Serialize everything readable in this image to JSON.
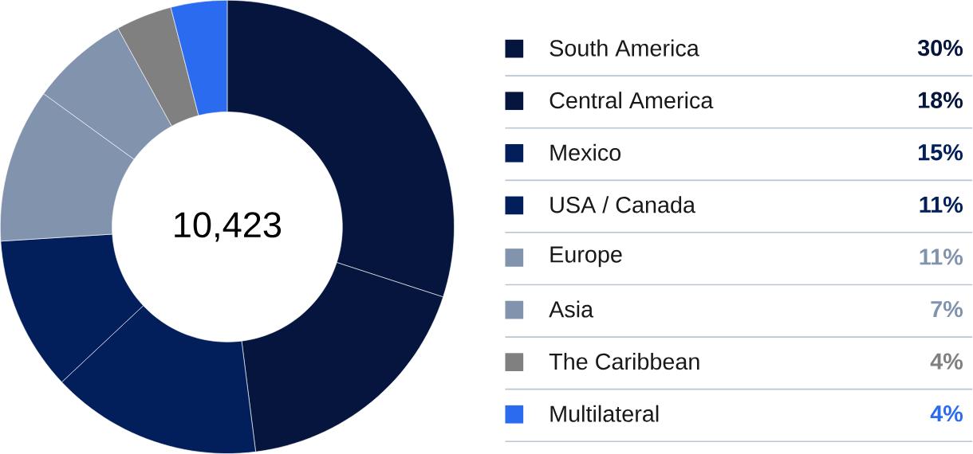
{
  "chart_data": {
    "type": "donut",
    "categories": [
      "South America",
      "Central America",
      "Mexico",
      "USA / Canada",
      "Europe",
      "Asia",
      "The Caribbean",
      "Multilateral"
    ],
    "values": [
      30,
      18,
      15,
      11,
      11,
      7,
      4,
      4
    ],
    "value_labels": [
      "30%",
      "18%",
      "15%",
      "11%",
      "11%",
      "7%",
      "4%",
      "4%"
    ],
    "colors": [
      "#05153d",
      "#05153d",
      "#021f5c",
      "#021f5c",
      "#8193ad",
      "#8193ad",
      "#808080",
      "#2b6bf0"
    ],
    "annotations": [
      "10,423"
    ],
    "legend": "right"
  }
}
